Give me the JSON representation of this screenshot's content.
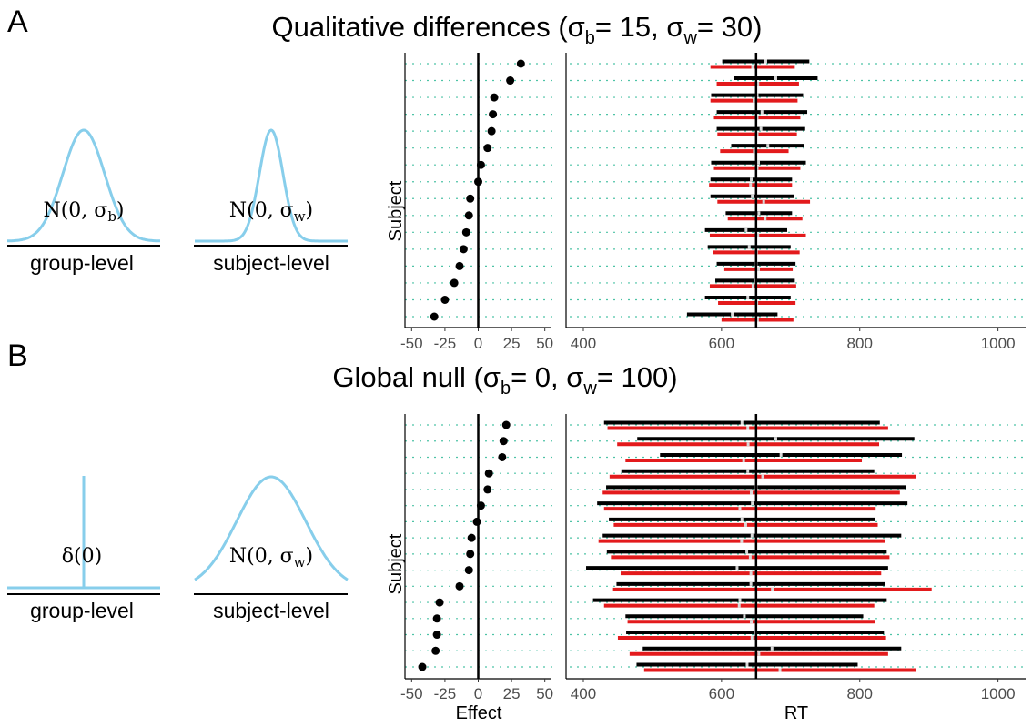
{
  "colors": {
    "curve": "#87CEEB",
    "grid": "#4EC3A6",
    "black": "#000000",
    "red": "#E31A1C"
  },
  "panels": [
    {
      "letter": "A",
      "title": "Qualitative differences (σ",
      "title_parts": [
        "Qualitative differences (σ",
        "b",
        "= 15, σ",
        "w",
        "= 30)"
      ],
      "group_dist": {
        "kind": "normal",
        "label": "N(0, σ",
        "sub": "b",
        "close": ")"
      },
      "subject_dist": {
        "kind": "normal",
        "label": "N(0, σ",
        "sub": "w",
        "close": ")"
      },
      "group_label": "group-level",
      "subject_label": "subject-level",
      "effect_ylabel": "Subject",
      "effect_xlabel": "",
      "rt_xlabel": ""
    },
    {
      "letter": "B",
      "title_parts": [
        "Global null (σ",
        "b",
        "= 0, σ",
        "w",
        "= 100)"
      ],
      "group_dist": {
        "kind": "delta",
        "label": "δ(0)",
        "sub": "",
        "close": ""
      },
      "subject_dist": {
        "kind": "normal",
        "label": "N(0, σ",
        "sub": "w",
        "close": ")"
      },
      "group_label": "group-level",
      "subject_label": "subject-level",
      "effect_ylabel": "Subject",
      "effect_xlabel": "Effect",
      "rt_xlabel": "RT"
    }
  ],
  "chart_data": [
    {
      "type": "scatter",
      "panel": "A",
      "xlabel": "",
      "ylabel": "Subject",
      "xlim": [
        -55,
        55
      ],
      "xticks": [
        -50,
        -25,
        0,
        25,
        50
      ],
      "vline": 0,
      "grid": "horizontal dotted",
      "effects": [
        32,
        24,
        12,
        11,
        10,
        7,
        2,
        0,
        -6,
        -7,
        -9,
        -11,
        -14,
        -18,
        -25,
        -33
      ]
    },
    {
      "type": "interval",
      "panel": "A",
      "xlabel": "",
      "ylabel": "",
      "xlim": [
        375,
        1040
      ],
      "xticks": [
        400,
        600,
        800,
        1000
      ],
      "vline": 650,
      "series": [
        {
          "name": "",
          "color": "black",
          "intervals": [
            [
              601,
              727
            ],
            [
              618,
              739
            ],
            [
              585,
              718
            ],
            [
              593,
              724
            ],
            [
              593,
              721
            ],
            [
              614,
              720
            ],
            [
              585,
              722
            ],
            [
              584,
              702
            ],
            [
              584,
              705
            ],
            [
              606,
              702
            ],
            [
              576,
              695
            ],
            [
              580,
              700
            ],
            [
              593,
              707
            ],
            [
              591,
              706
            ],
            [
              576,
              700
            ],
            [
              550,
              681
            ]
          ]
        },
        {
          "name": "",
          "color": "red",
          "intervals": [
            [
              584,
              706
            ],
            [
              593,
              712
            ],
            [
              584,
              710
            ],
            [
              589,
              714
            ],
            [
              594,
              709
            ],
            [
              598,
              697
            ],
            [
              589,
              714
            ],
            [
              582,
              702
            ],
            [
              594,
              728
            ],
            [
              609,
              717
            ],
            [
              583,
              722
            ],
            [
              588,
              713
            ],
            [
              604,
              703
            ],
            [
              583,
              708
            ],
            [
              595,
              707
            ],
            [
              600,
              704
            ]
          ]
        }
      ]
    },
    {
      "type": "scatter",
      "panel": "B",
      "xlabel": "Effect",
      "ylabel": "Subject",
      "xlim": [
        -55,
        55
      ],
      "xticks": [
        -50,
        -25,
        0,
        25,
        50
      ],
      "vline": 0,
      "grid": "horizontal dotted",
      "effects": [
        21,
        19,
        18,
        8,
        7,
        2,
        -1,
        -5,
        -6,
        -7,
        -14,
        -29,
        -31,
        -31,
        -32,
        -42
      ]
    },
    {
      "type": "interval",
      "panel": "B",
      "xlabel": "RT",
      "ylabel": "",
      "xlim": [
        375,
        1040
      ],
      "xticks": [
        400,
        600,
        800,
        1000
      ],
      "vline": 650,
      "series": [
        {
          "name": "",
          "color": "black",
          "intervals": [
            [
              430,
              829
            ],
            [
              478,
              879
            ],
            [
              511,
              861
            ],
            [
              455,
              821
            ],
            [
              433,
              867
            ],
            [
              420,
              869
            ],
            [
              437,
              822
            ],
            [
              428,
              860
            ],
            [
              434,
              839
            ],
            [
              404,
              841
            ],
            [
              448,
              837
            ],
            [
              414,
              839
            ],
            [
              461,
              805
            ],
            [
              462,
              835
            ],
            [
              486,
              860
            ],
            [
              477,
              797
            ]
          ]
        },
        {
          "name": "",
          "color": "red",
          "intervals": [
            [
              435,
              841
            ],
            [
              449,
              828
            ],
            [
              461,
              803
            ],
            [
              438,
              881
            ],
            [
              428,
              858
            ],
            [
              430,
              823
            ],
            [
              444,
              826
            ],
            [
              422,
              836
            ],
            [
              440,
              843
            ],
            [
              454,
              831
            ],
            [
              443,
              904
            ],
            [
              430,
              821
            ],
            [
              464,
              822
            ],
            [
              450,
              838
            ],
            [
              467,
              841
            ],
            [
              488,
              881
            ]
          ]
        }
      ]
    }
  ]
}
